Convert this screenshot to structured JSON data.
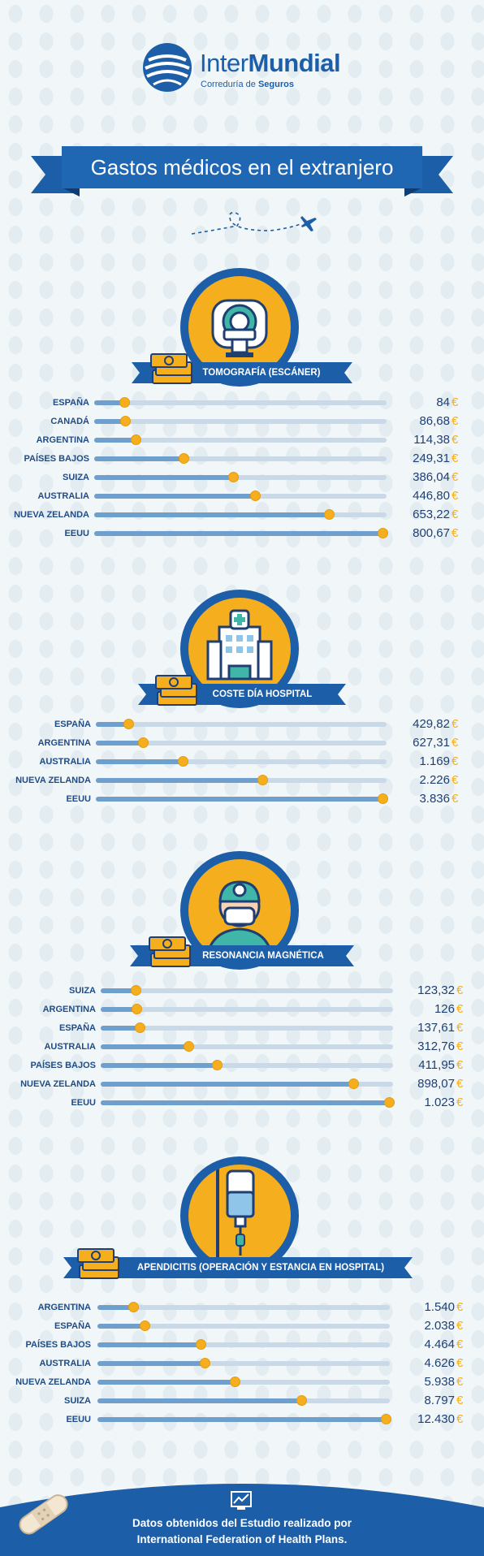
{
  "brand": {
    "name_light": "Inter",
    "name_bold": "Mundial",
    "sub_light": "Correduría de ",
    "sub_bold": "Seguros",
    "color": "#1d5ea8",
    "accent": "#f5ae1e"
  },
  "title": "Gastos médicos en el extranjero",
  "sections": [
    {
      "label": "TOMOGRAFÍA (ESCÁNER)",
      "icon": "ct-scanner-icon"
    },
    {
      "label": "COSTE DÍA HOSPITAL",
      "icon": "hospital-building-icon"
    },
    {
      "label": "RESONANCIA MAGNÉTICA",
      "icon": "doctor-icon"
    },
    {
      "label": "APENDICITIS (OPERACIÓN Y ESTANCIA EN HOSPITAL)",
      "icon": "iv-drip-icon"
    }
  ],
  "currency": "€",
  "chart_data": [
    {
      "type": "bar",
      "title": "TOMOGRAFÍA (ESCÁNER)",
      "categories": [
        "ESPAÑA",
        "CANADÁ",
        "ARGENTINA",
        "PAÍSES BAJOS",
        "SUIZA",
        "AUSTRALIA",
        "NUEVA ZELANDA",
        "EEUU"
      ],
      "values": [
        84,
        86.68,
        114.38,
        249.31,
        386.04,
        446.8,
        653.22,
        800.67
      ],
      "labels": [
        "84",
        "86,68",
        "114,38",
        "249,31",
        "386,04",
        "446,80",
        "653,22",
        "800,67"
      ],
      "max": 800.67
    },
    {
      "type": "bar",
      "title": "COSTE DÍA HOSPITAL",
      "categories": [
        "ESPAÑA",
        "ARGENTINA",
        "AUSTRALIA",
        "NUEVA ZELANDA",
        "EEUU"
      ],
      "values": [
        429.82,
        627.31,
        1169,
        2226,
        3836
      ],
      "labels": [
        "429,82",
        "627,31",
        "1.169",
        "2.226",
        "3.836"
      ],
      "max": 3836
    },
    {
      "type": "bar",
      "title": "RESONANCIA MAGNÉTICA",
      "categories": [
        "SUIZA",
        "ARGENTINA",
        "ESPAÑA",
        "AUSTRALIA",
        "PAÍSES BAJOS",
        "NUEVA ZELANDA",
        "EEUU"
      ],
      "values": [
        123.32,
        126,
        137.61,
        312.76,
        411.95,
        898.07,
        1023
      ],
      "labels": [
        "123,32",
        "126",
        "137,61",
        "312,76",
        "411,95",
        "898,07",
        "1.023"
      ],
      "max": 1023
    },
    {
      "type": "bar",
      "title": "APENDICITIS (OPERACIÓN Y ESTANCIA EN HOSPITAL)",
      "categories": [
        "ARGENTINA",
        "ESPAÑA",
        "PAÍSES BAJOS",
        "AUSTRALIA",
        "NUEVA ZELANDA",
        "SUIZA",
        "EEUU"
      ],
      "values": [
        1540,
        2038,
        4464,
        4626,
        5938,
        8797,
        12430
      ],
      "labels": [
        "1.540",
        "2.038",
        "4.464",
        "4.626",
        "5.938",
        "8.797",
        "12.430"
      ],
      "max": 12430
    }
  ],
  "footer": {
    "line1": "Datos obtenidos del Estudio realizado por",
    "line2": "International Federation of Health Plans.",
    "icon": "chart-icon"
  }
}
